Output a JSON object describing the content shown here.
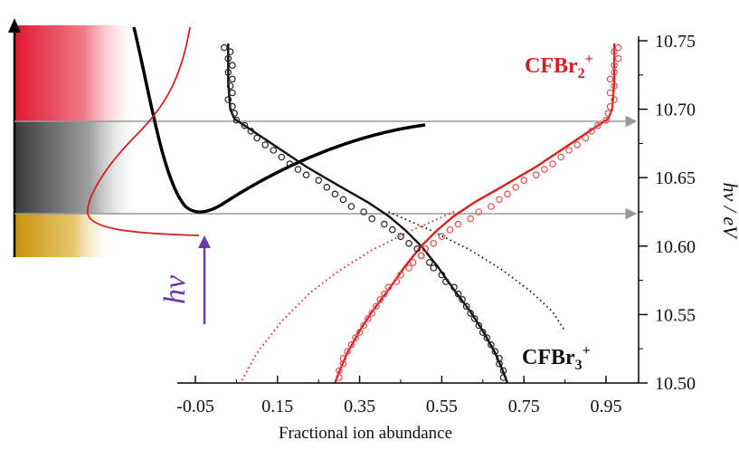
{
  "chart_data": {
    "type": "scatter",
    "xlabel": "Fractional ion abundance",
    "ylabel": "hv / eV",
    "xlim": [
      -0.12,
      1.02
    ],
    "ylim": [
      10.5,
      10.75
    ],
    "x_ticks": [
      -0.05,
      0.15,
      0.35,
      0.55,
      0.75,
      0.95
    ],
    "x_tick_labels": [
      "-0.05",
      "0.15",
      "0.35",
      "0.55",
      "0.75",
      "0.95"
    ],
    "y_ticks": [
      10.5,
      10.55,
      10.6,
      10.65,
      10.7,
      10.75
    ],
    "y_tick_labels": [
      "10.50",
      "10.55",
      "10.60",
      "10.65",
      "10.70",
      "10.75"
    ],
    "y_axis_side": "right",
    "grid": false,
    "reference_lines_y": [
      10.69,
      10.625
    ],
    "hv_label": "hv",
    "series": [
      {
        "name": "CFBr3+",
        "color": "#111111",
        "markers": "open-circle",
        "points": [
          [
            0.02,
            10.745
          ],
          [
            0.035,
            10.742
          ],
          [
            0.03,
            10.737
          ],
          [
            0.04,
            10.732
          ],
          [
            0.03,
            10.727
          ],
          [
            0.04,
            10.722
          ],
          [
            0.035,
            10.717
          ],
          [
            0.04,
            10.712
          ],
          [
            0.03,
            10.707
          ],
          [
            0.04,
            10.702
          ],
          [
            0.045,
            10.697
          ],
          [
            0.05,
            10.692
          ],
          [
            0.07,
            10.688
          ],
          [
            0.085,
            10.684
          ],
          [
            0.1,
            10.679
          ],
          [
            0.12,
            10.674
          ],
          [
            0.14,
            10.67
          ],
          [
            0.16,
            10.665
          ],
          [
            0.18,
            10.66
          ],
          [
            0.2,
            10.656
          ],
          [
            0.22,
            10.652
          ],
          [
            0.25,
            10.648
          ],
          [
            0.27,
            10.643
          ],
          [
            0.29,
            10.638
          ],
          [
            0.31,
            10.634
          ],
          [
            0.33,
            10.629
          ],
          [
            0.36,
            10.625
          ],
          [
            0.38,
            10.62
          ],
          [
            0.41,
            10.616
          ],
          [
            0.43,
            10.612
          ],
          [
            0.45,
            10.607
          ],
          [
            0.47,
            10.602
          ],
          [
            0.49,
            10.598
          ],
          [
            0.5,
            10.593
          ],
          [
            0.52,
            10.588
          ],
          [
            0.53,
            10.584
          ],
          [
            0.55,
            10.579
          ],
          [
            0.56,
            10.574
          ],
          [
            0.58,
            10.57
          ],
          [
            0.59,
            10.565
          ],
          [
            0.6,
            10.561
          ],
          [
            0.61,
            10.556
          ],
          [
            0.62,
            10.551
          ],
          [
            0.63,
            10.547
          ],
          [
            0.64,
            10.542
          ],
          [
            0.65,
            10.537
          ],
          [
            0.66,
            10.533
          ],
          [
            0.67,
            10.528
          ],
          [
            0.68,
            10.523
          ],
          [
            0.69,
            10.518
          ],
          [
            0.69,
            10.514
          ],
          [
            0.7,
            10.509
          ],
          [
            0.7,
            10.504
          ]
        ],
        "fit": [
          [
            0.03,
            10.748
          ],
          [
            0.03,
            10.72
          ],
          [
            0.035,
            10.7
          ],
          [
            0.045,
            10.693
          ],
          [
            0.08,
            10.686
          ],
          [
            0.15,
            10.672
          ],
          [
            0.22,
            10.658
          ],
          [
            0.3,
            10.644
          ],
          [
            0.37,
            10.632
          ],
          [
            0.42,
            10.622
          ],
          [
            0.46,
            10.612
          ],
          [
            0.5,
            10.6
          ],
          [
            0.54,
            10.585
          ],
          [
            0.58,
            10.568
          ],
          [
            0.62,
            10.552
          ],
          [
            0.65,
            10.538
          ],
          [
            0.68,
            10.522
          ],
          [
            0.7,
            10.508
          ],
          [
            0.71,
            10.5
          ]
        ],
        "extrapolation": [
          [
            0.42,
            10.625
          ],
          [
            0.52,
            10.612
          ],
          [
            0.62,
            10.597
          ],
          [
            0.7,
            10.582
          ],
          [
            0.77,
            10.566
          ],
          [
            0.82,
            10.552
          ],
          [
            0.85,
            10.538
          ]
        ]
      },
      {
        "name": "CFBr2+",
        "color": "#d42020",
        "markers": "open-circle",
        "points": [
          [
            0.98,
            10.745
          ],
          [
            0.97,
            10.742
          ],
          [
            0.98,
            10.737
          ],
          [
            0.97,
            10.732
          ],
          [
            0.97,
            10.727
          ],
          [
            0.96,
            10.722
          ],
          [
            0.97,
            10.717
          ],
          [
            0.96,
            10.712
          ],
          [
            0.97,
            10.707
          ],
          [
            0.96,
            10.702
          ],
          [
            0.955,
            10.697
          ],
          [
            0.95,
            10.692
          ],
          [
            0.93,
            10.688
          ],
          [
            0.915,
            10.684
          ],
          [
            0.9,
            10.679
          ],
          [
            0.88,
            10.674
          ],
          [
            0.86,
            10.67
          ],
          [
            0.84,
            10.665
          ],
          [
            0.82,
            10.66
          ],
          [
            0.8,
            10.656
          ],
          [
            0.78,
            10.652
          ],
          [
            0.75,
            10.648
          ],
          [
            0.73,
            10.643
          ],
          [
            0.71,
            10.638
          ],
          [
            0.69,
            10.634
          ],
          [
            0.67,
            10.629
          ],
          [
            0.64,
            10.625
          ],
          [
            0.62,
            10.62
          ],
          [
            0.59,
            10.616
          ],
          [
            0.57,
            10.612
          ],
          [
            0.55,
            10.607
          ],
          [
            0.53,
            10.602
          ],
          [
            0.51,
            10.598
          ],
          [
            0.5,
            10.593
          ],
          [
            0.48,
            10.588
          ],
          [
            0.47,
            10.584
          ],
          [
            0.45,
            10.579
          ],
          [
            0.44,
            10.574
          ],
          [
            0.42,
            10.57
          ],
          [
            0.41,
            10.565
          ],
          [
            0.4,
            10.561
          ],
          [
            0.39,
            10.556
          ],
          [
            0.38,
            10.551
          ],
          [
            0.37,
            10.547
          ],
          [
            0.36,
            10.542
          ],
          [
            0.35,
            10.537
          ],
          [
            0.34,
            10.533
          ],
          [
            0.33,
            10.528
          ],
          [
            0.32,
            10.523
          ],
          [
            0.31,
            10.518
          ],
          [
            0.31,
            10.514
          ],
          [
            0.3,
            10.509
          ],
          [
            0.3,
            10.504
          ]
        ],
        "fit": [
          [
            0.97,
            10.748
          ],
          [
            0.97,
            10.72
          ],
          [
            0.965,
            10.7
          ],
          [
            0.955,
            10.693
          ],
          [
            0.92,
            10.686
          ],
          [
            0.85,
            10.672
          ],
          [
            0.78,
            10.658
          ],
          [
            0.7,
            10.644
          ],
          [
            0.63,
            10.632
          ],
          [
            0.58,
            10.622
          ],
          [
            0.54,
            10.612
          ],
          [
            0.5,
            10.6
          ],
          [
            0.46,
            10.585
          ],
          [
            0.42,
            10.568
          ],
          [
            0.38,
            10.552
          ],
          [
            0.35,
            10.538
          ],
          [
            0.32,
            10.522
          ],
          [
            0.3,
            10.508
          ],
          [
            0.29,
            10.5
          ]
        ],
        "extrapolation": [
          [
            0.58,
            10.625
          ],
          [
            0.48,
            10.612
          ],
          [
            0.38,
            10.597
          ],
          [
            0.3,
            10.582
          ],
          [
            0.23,
            10.566
          ],
          [
            0.16,
            10.545
          ],
          [
            0.1,
            10.522
          ],
          [
            0.06,
            10.5
          ]
        ]
      }
    ]
  }
}
